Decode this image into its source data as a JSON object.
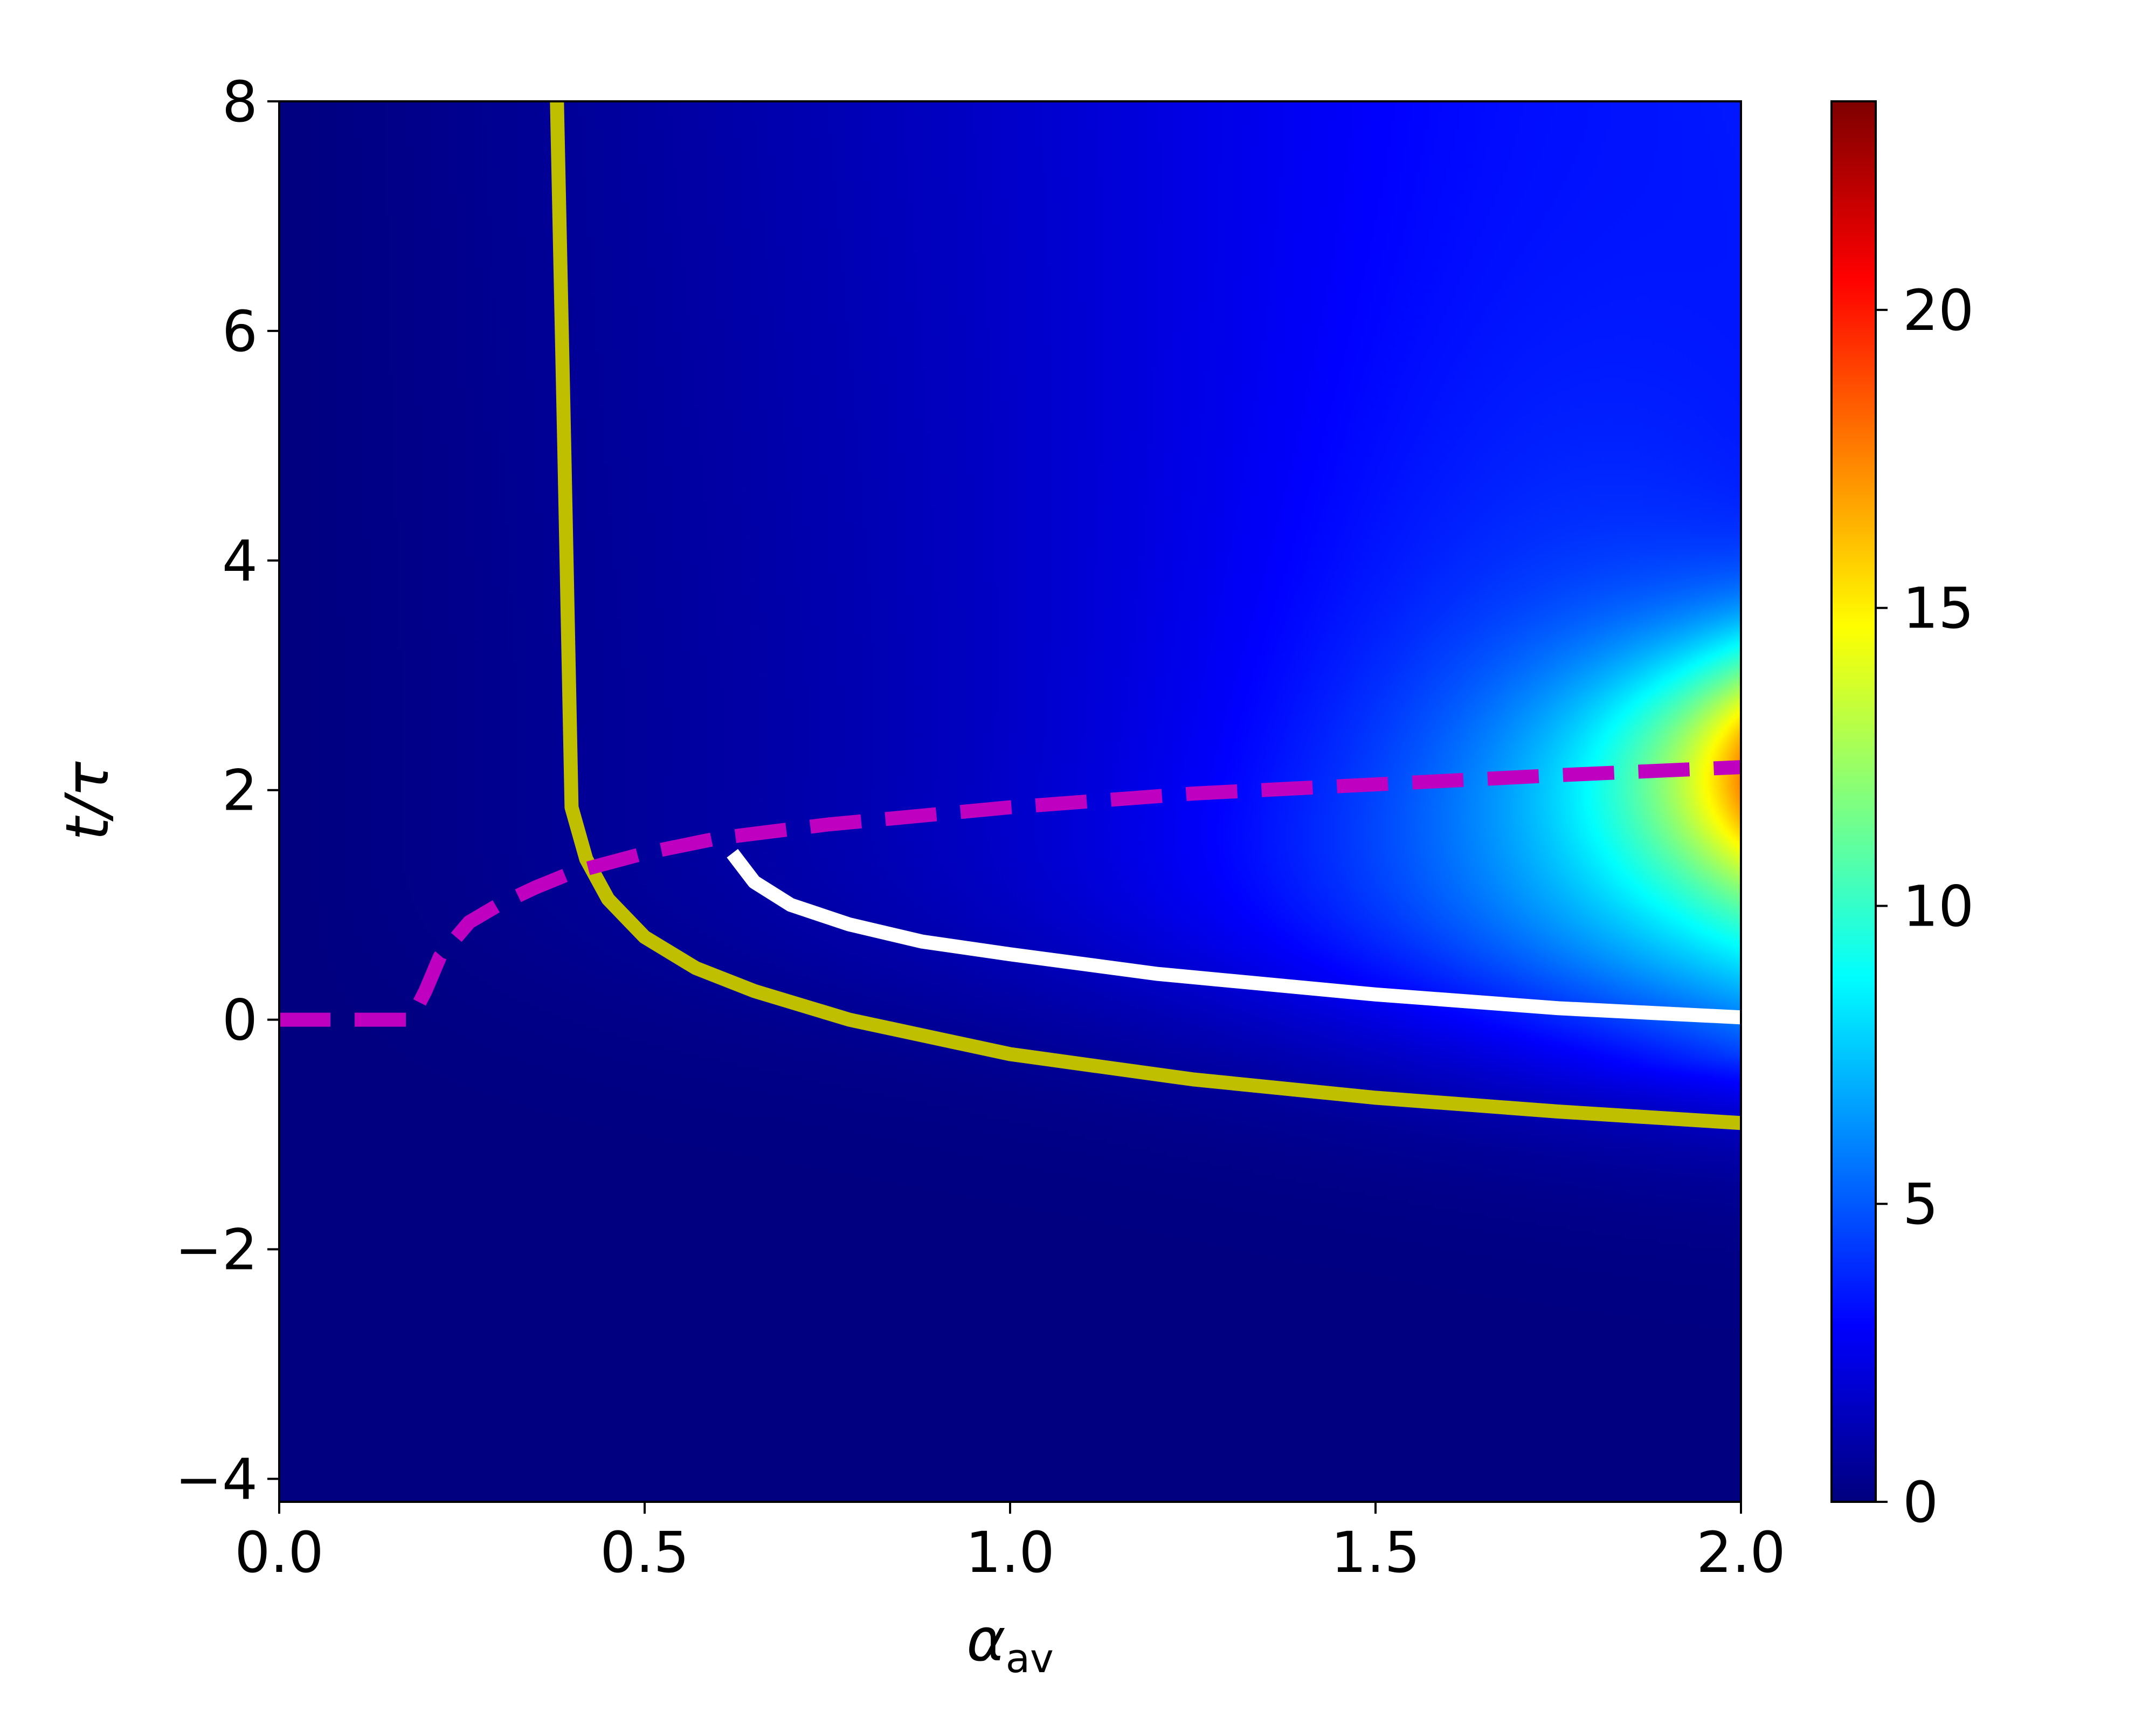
{
  "chart_data": {
    "type": "heatmap",
    "title": "",
    "xlabel": {
      "base": "α",
      "sub": "av"
    },
    "ylabel": "t/τ",
    "xlim": [
      0.0,
      2.0
    ],
    "ylim": [
      -4.2,
      8.0
    ],
    "x_ticks": [
      "0.0",
      "0.5",
      "1.0",
      "1.5",
      "2.0"
    ],
    "y_ticks": [
      "−4",
      "−2",
      "0",
      "2",
      "4",
      "6",
      "8"
    ],
    "x_tick_values": [
      0.0,
      0.5,
      1.0,
      1.5,
      2.0
    ],
    "y_tick_values": [
      -4,
      -2,
      0,
      2,
      4,
      6,
      8
    ],
    "colormap": "jet",
    "colorbar": {
      "min": 0,
      "max": 23.5,
      "ticks": [
        "0",
        "5",
        "10",
        "15",
        "20"
      ],
      "tick_values": [
        0,
        5,
        10,
        15,
        20
      ]
    },
    "series": [
      {
        "color": "#bfbf00",
        "style": "solid",
        "points": [
          [
            0.38,
            8.0
          ],
          [
            0.39,
            5.0
          ],
          [
            0.4,
            1.85
          ],
          [
            0.42,
            1.4
          ],
          [
            0.45,
            1.05
          ],
          [
            0.5,
            0.72
          ],
          [
            0.57,
            0.45
          ],
          [
            0.65,
            0.25
          ],
          [
            0.78,
            0.0
          ],
          [
            1.0,
            -0.3
          ],
          [
            1.25,
            -0.52
          ],
          [
            1.5,
            -0.68
          ],
          [
            1.75,
            -0.8
          ],
          [
            2.0,
            -0.9
          ]
        ]
      },
      {
        "color": "#ffffff",
        "style": "solid",
        "points": [
          [
            0.62,
            1.45
          ],
          [
            0.65,
            1.2
          ],
          [
            0.7,
            1.0
          ],
          [
            0.78,
            0.83
          ],
          [
            0.88,
            0.68
          ],
          [
            1.0,
            0.57
          ],
          [
            1.2,
            0.4
          ],
          [
            1.5,
            0.22
          ],
          [
            1.75,
            0.1
          ],
          [
            2.0,
            0.02
          ]
        ]
      },
      {
        "color": "#c000c0",
        "style": "dashed",
        "points": [
          [
            0.0,
            0.0
          ],
          [
            0.18,
            0.0
          ],
          [
            0.2,
            0.25
          ],
          [
            0.22,
            0.55
          ],
          [
            0.26,
            0.85
          ],
          [
            0.3,
            1.0
          ],
          [
            0.35,
            1.15
          ],
          [
            0.4,
            1.28
          ],
          [
            0.5,
            1.45
          ],
          [
            0.6,
            1.58
          ],
          [
            0.75,
            1.7
          ],
          [
            1.0,
            1.85
          ],
          [
            1.25,
            1.97
          ],
          [
            1.5,
            2.05
          ],
          [
            1.75,
            2.13
          ],
          [
            2.0,
            2.2
          ]
        ]
      }
    ]
  }
}
